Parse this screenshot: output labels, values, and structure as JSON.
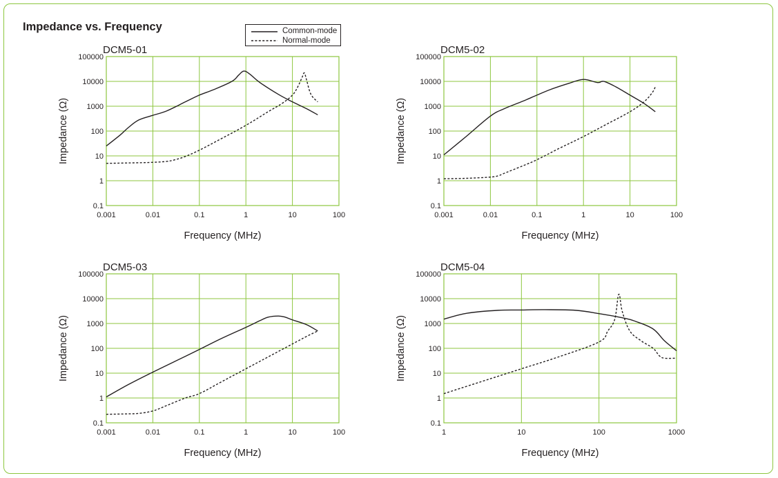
{
  "page": {
    "title": "Impedance vs. Frequency"
  },
  "legend": [
    {
      "label": "Common-mode",
      "style": "solid"
    },
    {
      "label": "Normal-mode",
      "style": "dashed"
    }
  ],
  "colors": {
    "frame": "#8cc63e",
    "grid": "#8cc63e",
    "line": "#231f20"
  },
  "chart_data": [
    {
      "type": "line",
      "title": "DCM5-01",
      "xlabel": "Frequency (MHz)",
      "ylabel": "Impedance (Ω)",
      "x_scale": "log",
      "y_scale": "log",
      "xlim": [
        0.001,
        100
      ],
      "ylim": [
        0.1,
        100000
      ],
      "x_ticks": [
        "0.001",
        "0.01",
        "0.1",
        "1",
        "10",
        "100"
      ],
      "y_ticks": [
        "0.1",
        "1",
        "10",
        "100",
        "1000",
        "10000",
        "100000"
      ],
      "grid": true,
      "series": [
        {
          "name": "Common-mode",
          "style": "solid",
          "x": [
            0.001,
            0.002,
            0.003,
            0.005,
            0.01,
            0.02,
            0.05,
            0.1,
            0.2,
            0.5,
            0.7,
            0.9,
            1.2,
            2,
            5,
            10,
            20,
            35
          ],
          "y": [
            25,
            70,
            140,
            280,
            430,
            650,
            1500,
            2800,
            4600,
            10000,
            18000,
            26000,
            20000,
            9000,
            3000,
            1500,
            800,
            450
          ]
        },
        {
          "name": "Normal-mode",
          "style": "dashed",
          "x": [
            0.001,
            0.005,
            0.01,
            0.02,
            0.03,
            0.05,
            0.1,
            0.3,
            1,
            3,
            6,
            10,
            13,
            16,
            18,
            20,
            25,
            35
          ],
          "y": [
            5,
            5.3,
            5.5,
            6,
            7,
            9.5,
            17,
            50,
            170,
            600,
            1300,
            2800,
            6000,
            14000,
            22000,
            12000,
            3000,
            1500
          ]
        }
      ]
    },
    {
      "type": "line",
      "title": "DCM5-02",
      "xlabel": "Frequency (MHz)",
      "ylabel": "Impedance (Ω)",
      "x_scale": "log",
      "y_scale": "log",
      "xlim": [
        0.001,
        100
      ],
      "ylim": [
        0.1,
        100000
      ],
      "x_ticks": [
        "0.001",
        "0.01",
        "0.1",
        "1",
        "10",
        "100"
      ],
      "y_ticks": [
        "0.1",
        "1",
        "10",
        "100",
        "1000",
        "10000",
        "100000"
      ],
      "grid": true,
      "series": [
        {
          "name": "Common-mode",
          "style": "solid",
          "x": [
            0.001,
            0.003,
            0.01,
            0.02,
            0.05,
            0.1,
            0.2,
            0.5,
            1,
            2,
            2.5,
            3,
            5,
            10,
            20,
            35
          ],
          "y": [
            11,
            60,
            400,
            800,
            1600,
            2800,
            4800,
            8500,
            12000,
            9000,
            10000,
            9500,
            6000,
            2800,
            1300,
            600
          ]
        },
        {
          "name": "Normal-mode",
          "style": "dashed",
          "x": [
            0.001,
            0.003,
            0.01,
            0.015,
            0.02,
            0.05,
            0.1,
            0.3,
            1,
            3,
            10,
            20,
            30,
            35
          ],
          "y": [
            1.2,
            1.25,
            1.4,
            1.6,
            2,
            4,
            7,
            20,
            60,
            180,
            600,
            1500,
            3500,
            6000
          ]
        }
      ]
    },
    {
      "type": "line",
      "title": "DCM5-03",
      "xlabel": "Frequency (MHz)",
      "ylabel": "Impedance (Ω)",
      "x_scale": "log",
      "y_scale": "log",
      "xlim": [
        0.001,
        100
      ],
      "ylim": [
        0.1,
        100000
      ],
      "x_ticks": [
        "0.001",
        "0.01",
        "0.1",
        "1",
        "10",
        "100"
      ],
      "y_ticks": [
        "0.1",
        "1",
        "10",
        "100",
        "1000",
        "10000",
        "100000"
      ],
      "grid": true,
      "series": [
        {
          "name": "Common-mode",
          "style": "solid",
          "x": [
            0.001,
            0.003,
            0.01,
            0.03,
            0.1,
            0.3,
            1,
            2,
            3,
            5,
            7,
            10,
            20,
            35
          ],
          "y": [
            1.1,
            3.5,
            11,
            30,
            90,
            250,
            700,
            1300,
            1800,
            2000,
            1800,
            1400,
            900,
            500
          ]
        },
        {
          "name": "Normal-mode",
          "style": "dashed",
          "x": [
            0.001,
            0.003,
            0.005,
            0.01,
            0.02,
            0.05,
            0.1,
            0.3,
            1,
            3,
            10,
            20,
            35
          ],
          "y": [
            0.22,
            0.23,
            0.24,
            0.3,
            0.5,
            1.0,
            1.5,
            4.5,
            15,
            45,
            150,
            300,
            500
          ]
        }
      ]
    },
    {
      "type": "line",
      "title": "DCM5-04",
      "xlabel": "Frequency (MHz)",
      "ylabel": "Impedance (Ω)",
      "x_scale": "log",
      "y_scale": "log",
      "xlim": [
        1,
        1000
      ],
      "ylim": [
        0.1,
        100000
      ],
      "x_ticks": [
        "1",
        "10",
        "100",
        "1000"
      ],
      "y_ticks": [
        "0.1",
        "1",
        "10",
        "100",
        "1000",
        "10000",
        "100000"
      ],
      "grid": true,
      "series": [
        {
          "name": "Common-mode",
          "style": "solid",
          "x": [
            1,
            2,
            5,
            10,
            20,
            50,
            100,
            200,
            300,
            500,
            700,
            1000
          ],
          "y": [
            1500,
            2600,
            3400,
            3500,
            3600,
            3400,
            2500,
            1700,
            1200,
            600,
            200,
            80
          ]
        },
        {
          "name": "Normal-mode",
          "style": "dashed",
          "x": [
            1,
            3,
            10,
            30,
            100,
            130,
            160,
            180,
            200,
            250,
            350,
            500,
            600,
            700,
            1000
          ],
          "y": [
            1.5,
            4.5,
            15,
            45,
            180,
            500,
            1500,
            15000,
            3000,
            500,
            200,
            100,
            50,
            40,
            40
          ]
        }
      ]
    }
  ]
}
